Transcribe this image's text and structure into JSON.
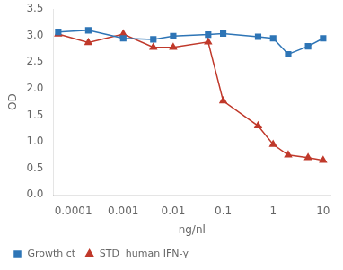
{
  "chart_data": {
    "type": "line",
    "x": [
      5e-05,
      0.0002,
      0.001,
      0.004,
      0.01,
      0.05,
      0.1,
      0.5,
      1.0,
      2.0,
      5.0,
      10.0
    ],
    "series": [
      {
        "name": "Growth ct",
        "color": "#2e75b6",
        "marker": "square",
        "values": [
          3.07,
          3.1,
          2.95,
          2.93,
          2.99,
          3.02,
          3.04,
          2.98,
          2.95,
          2.65,
          2.8,
          2.95
        ]
      },
      {
        "name": "STD  human IFN-γ",
        "color": "#c0392b",
        "marker": "triangle",
        "values": [
          3.03,
          2.87,
          3.03,
          2.78,
          2.78,
          2.88,
          1.77,
          1.3,
          0.95,
          0.75,
          0.7,
          0.65
        ]
      }
    ],
    "xlabel": "ng/nl",
    "ylabel": "OD",
    "log": "x",
    "xlim": [
      4e-05,
      14
    ],
    "xticks": [
      0.0001,
      0.001,
      0.01,
      0.1,
      1,
      10
    ],
    "ylim": [
      0.0,
      3.5
    ],
    "yticks": [
      {
        "value": 0,
        "label": "0.0"
      },
      0.5,
      {
        "value": 1,
        "label": "1.0"
      },
      1.5,
      {
        "value": 2,
        "label": "2.0"
      },
      2.5,
      {
        "value": 3,
        "label": "3.0"
      },
      3.5
    ],
    "grid": false,
    "legend": "lower left"
  }
}
